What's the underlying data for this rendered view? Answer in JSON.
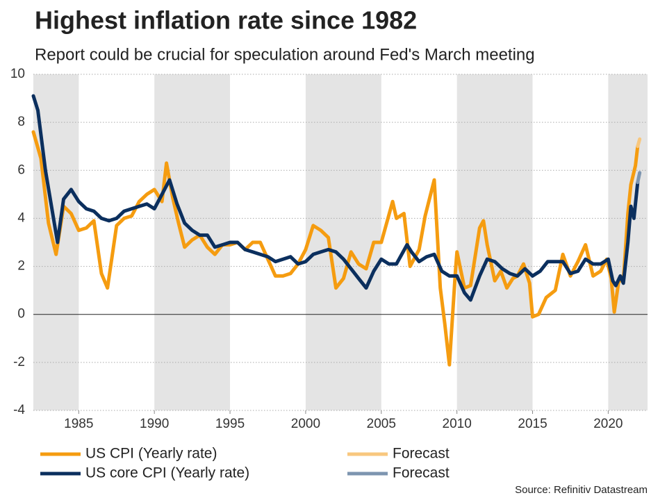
{
  "chart_data": {
    "type": "line",
    "title": "Highest inflation rate since 1982",
    "subtitle": "Report could be crucial for speculation around Fed's March meeting",
    "source": "Source: Refinitiv Datastream",
    "xlim": [
      1982,
      2022.6
    ],
    "xticks": [
      1985,
      1990,
      1995,
      2000,
      2005,
      2010,
      2015,
      2020
    ],
    "ylim": [
      -4,
      10
    ],
    "yticks": [
      -4,
      -2,
      0,
      2,
      4,
      6,
      8,
      10
    ],
    "grid": true,
    "series": [
      {
        "name": "US CPI (Yearly rate)",
        "color": "#f59c10",
        "x": [
          1982.0,
          1982.5,
          1983.0,
          1983.5,
          1984.0,
          1984.5,
          1985.0,
          1985.5,
          1986.0,
          1986.5,
          1986.9,
          1987.5,
          1988.0,
          1988.5,
          1989.0,
          1989.5,
          1990.0,
          1990.5,
          1990.8,
          1991.2,
          1991.6,
          1992.0,
          1992.5,
          1993.0,
          1993.5,
          1994.0,
          1994.5,
          1995.0,
          1995.5,
          1996.0,
          1996.5,
          1997.0,
          1997.5,
          1998.0,
          1998.5,
          1999.0,
          1999.5,
          2000.0,
          2000.5,
          2001.0,
          2001.5,
          2002.0,
          2002.5,
          2003.0,
          2003.5,
          2004.0,
          2004.5,
          2005.0,
          2005.75,
          2006.0,
          2006.5,
          2006.9,
          2007.5,
          2007.9,
          2008.5,
          2008.9,
          2009.2,
          2009.5,
          2009.9,
          2010.0,
          2010.5,
          2010.9,
          2011.5,
          2011.75,
          2012.0,
          2012.5,
          2012.9,
          2013.3,
          2013.7,
          2014.0,
          2014.4,
          2014.8,
          2015.0,
          2015.4,
          2015.9,
          2016.5,
          2017.0,
          2017.5,
          2018.0,
          2018.5,
          2019.0,
          2019.5,
          2019.9,
          2020.2,
          2020.4,
          2020.7,
          2021.0,
          2021.3,
          2021.5,
          2021.8,
          2021.95
        ],
        "values": [
          7.6,
          6.5,
          3.8,
          2.5,
          4.5,
          4.2,
          3.5,
          3.6,
          3.9,
          1.7,
          1.1,
          3.7,
          4.0,
          4.1,
          4.7,
          5.0,
          5.2,
          4.7,
          6.3,
          4.9,
          3.8,
          2.8,
          3.1,
          3.3,
          2.8,
          2.5,
          2.9,
          2.9,
          3.0,
          2.7,
          3.0,
          3.0,
          2.3,
          1.6,
          1.6,
          1.7,
          2.1,
          2.7,
          3.7,
          3.5,
          3.2,
          1.1,
          1.5,
          2.6,
          2.1,
          1.9,
          3.0,
          3.0,
          4.7,
          4.0,
          4.2,
          2.0,
          2.7,
          4.1,
          5.6,
          1.1,
          -0.4,
          -2.1,
          1.8,
          2.6,
          1.1,
          1.2,
          3.6,
          3.9,
          2.9,
          1.4,
          1.8,
          1.1,
          1.5,
          1.6,
          2.1,
          1.3,
          -0.1,
          0.0,
          0.7,
          1.0,
          2.5,
          1.6,
          2.2,
          2.9,
          1.6,
          1.8,
          2.3,
          1.5,
          0.1,
          1.4,
          1.4,
          4.2,
          5.4,
          6.2,
          7.0
        ]
      },
      {
        "name": "US core CPI (Yearly rate)",
        "color": "#0b2f5e",
        "x": [
          1982.0,
          1982.3,
          1982.8,
          1983.2,
          1983.6,
          1984.0,
          1984.5,
          1985.0,
          1985.5,
          1986.0,
          1986.5,
          1987.0,
          1987.5,
          1988.0,
          1988.5,
          1989.0,
          1989.5,
          1990.0,
          1990.5,
          1991.0,
          1991.5,
          1992.0,
          1992.5,
          1993.0,
          1993.5,
          1994.0,
          1994.5,
          1995.0,
          1995.5,
          1996.0,
          1996.5,
          1997.0,
          1997.5,
          1998.0,
          1998.5,
          1999.0,
          1999.5,
          2000.0,
          2000.5,
          2001.0,
          2001.5,
          2002.0,
          2002.5,
          2003.0,
          2003.5,
          2004.0,
          2004.5,
          2005.0,
          2005.5,
          2006.0,
          2006.7,
          2007.0,
          2007.5,
          2008.0,
          2008.5,
          2009.0,
          2009.5,
          2010.0,
          2010.5,
          2010.9,
          2011.5,
          2012.0,
          2012.5,
          2013.0,
          2013.5,
          2014.0,
          2014.5,
          2015.0,
          2015.5,
          2016.0,
          2016.5,
          2017.0,
          2017.5,
          2018.0,
          2018.5,
          2019.0,
          2019.5,
          2020.0,
          2020.3,
          2020.5,
          2020.8,
          2021.0,
          2021.3,
          2021.5,
          2021.7,
          2021.95
        ],
        "values": [
          9.1,
          8.5,
          6.0,
          4.5,
          3.0,
          4.8,
          5.2,
          4.7,
          4.4,
          4.3,
          4.0,
          3.9,
          4.0,
          4.3,
          4.4,
          4.5,
          4.6,
          4.4,
          5.0,
          5.6,
          4.6,
          3.8,
          3.5,
          3.3,
          3.3,
          2.8,
          2.9,
          3.0,
          3.0,
          2.7,
          2.6,
          2.5,
          2.4,
          2.2,
          2.3,
          2.4,
          2.1,
          2.2,
          2.5,
          2.6,
          2.7,
          2.6,
          2.3,
          1.9,
          1.5,
          1.1,
          1.8,
          2.3,
          2.1,
          2.1,
          2.9,
          2.6,
          2.2,
          2.4,
          2.5,
          1.8,
          1.6,
          1.6,
          0.9,
          0.6,
          1.6,
          2.3,
          2.2,
          1.9,
          1.7,
          1.6,
          1.9,
          1.6,
          1.8,
          2.2,
          2.2,
          2.2,
          1.7,
          1.8,
          2.3,
          2.1,
          2.1,
          2.3,
          1.4,
          1.2,
          1.6,
          1.3,
          3.0,
          4.5,
          4.0,
          5.5
        ]
      },
      {
        "name": "Forecast",
        "color": "#f8c77e",
        "x": [
          2021.95,
          2022.08
        ],
        "values": [
          7.0,
          7.3
        ]
      },
      {
        "name": "Forecast",
        "color": "#7d95b0",
        "x": [
          2021.95,
          2022.08
        ],
        "values": [
          5.5,
          5.9
        ]
      }
    ]
  }
}
